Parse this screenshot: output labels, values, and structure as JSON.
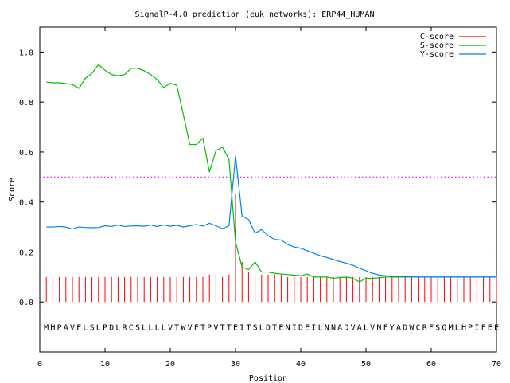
{
  "chart_data": {
    "type": "line",
    "title": "SignalP-4.0 prediction (euk networks): ERP44_HUMAN",
    "xlabel": "Position",
    "ylabel": "Score",
    "xlim": [
      0,
      70
    ],
    "ylim": [
      -0.2,
      1.1
    ],
    "x_ticks": [
      0,
      10,
      20,
      30,
      40,
      50,
      60,
      70
    ],
    "y_ticks": [
      0.0,
      0.2,
      0.4,
      0.6,
      0.8,
      1.0
    ],
    "x_tick_labels": [
      "0",
      "10",
      "20",
      "30",
      "40",
      "50",
      "60",
      "70"
    ],
    "y_tick_labels": [
      "0.0",
      "0.2",
      "0.4",
      "0.6",
      "0.8",
      "1.0"
    ],
    "threshold": 0.5,
    "legend_position": "top-right",
    "colors": {
      "c_score": "#ff0000",
      "s_score": "#00c000",
      "y_score": "#0080ff",
      "threshold": "#ff00ff"
    },
    "sequence": "MHPAVFLSLPDLRCSLLLLVTWVFTPVTTEITSLDTENIDEILNNADVALVNFYADWCRFSQMLHPIFEE",
    "series": [
      {
        "name": "C-score",
        "style": "impulse",
        "x": [
          1,
          2,
          3,
          4,
          5,
          6,
          7,
          8,
          9,
          10,
          11,
          12,
          13,
          14,
          15,
          16,
          17,
          18,
          19,
          20,
          21,
          22,
          23,
          24,
          25,
          26,
          27,
          28,
          29,
          30,
          31,
          32,
          33,
          34,
          35,
          36,
          37,
          38,
          39,
          40,
          41,
          42,
          43,
          44,
          45,
          46,
          47,
          48,
          49,
          50,
          51,
          52,
          53,
          54,
          55,
          56,
          57,
          58,
          59,
          60,
          61,
          62,
          63,
          64,
          65,
          66,
          67,
          68,
          69,
          70
        ],
        "values": [
          0.1,
          0.1,
          0.1,
          0.1,
          0.1,
          0.1,
          0.1,
          0.1,
          0.1,
          0.1,
          0.1,
          0.1,
          0.1,
          0.1,
          0.1,
          0.1,
          0.1,
          0.1,
          0.1,
          0.1,
          0.1,
          0.1,
          0.1,
          0.1,
          0.1,
          0.11,
          0.11,
          0.1,
          0.11,
          0.43,
          0.16,
          0.12,
          0.11,
          0.11,
          0.11,
          0.11,
          0.11,
          0.1,
          0.1,
          0.1,
          0.1,
          0.1,
          0.1,
          0.1,
          0.1,
          0.1,
          0.1,
          0.1,
          0.1,
          0.1,
          0.1,
          0.1,
          0.1,
          0.1,
          0.1,
          0.1,
          0.1,
          0.1,
          0.1,
          0.1,
          0.1,
          0.1,
          0.1,
          0.1,
          0.1,
          0.1,
          0.1,
          0.1,
          0.1,
          0.1
        ]
      },
      {
        "name": "S-score",
        "style": "line",
        "x": [
          1,
          2,
          3,
          4,
          5,
          6,
          7,
          8,
          9,
          10,
          11,
          12,
          13,
          14,
          15,
          16,
          17,
          18,
          19,
          20,
          21,
          22,
          23,
          24,
          25,
          26,
          27,
          28,
          29,
          30,
          31,
          32,
          33,
          34,
          35,
          36,
          37,
          38,
          39,
          40,
          41,
          42,
          43,
          44,
          45,
          46,
          47,
          48,
          49,
          50,
          51,
          52,
          53,
          54,
          55,
          56,
          57,
          58,
          59,
          60,
          61,
          62,
          63,
          64,
          65,
          66,
          67,
          68,
          69,
          70
        ],
        "values": [
          0.88,
          0.877,
          0.877,
          0.874,
          0.87,
          0.855,
          0.895,
          0.915,
          0.95,
          0.927,
          0.91,
          0.905,
          0.91,
          0.935,
          0.935,
          0.925,
          0.91,
          0.89,
          0.858,
          0.875,
          0.867,
          0.75,
          0.63,
          0.63,
          0.655,
          0.52,
          0.605,
          0.62,
          0.57,
          0.24,
          0.14,
          0.13,
          0.16,
          0.12,
          0.12,
          0.115,
          0.112,
          0.11,
          0.107,
          0.105,
          0.112,
          0.1,
          0.1,
          0.1,
          0.095,
          0.098,
          0.1,
          0.095,
          0.08,
          0.095,
          0.095,
          0.097,
          0.1,
          0.1,
          0.1,
          0.1,
          0.1,
          0.1,
          0.1,
          0.1,
          0.1,
          0.1,
          0.1,
          0.1,
          0.1,
          0.1,
          0.1,
          0.1,
          0.1,
          0.1
        ]
      },
      {
        "name": "Y-score",
        "style": "line",
        "x": [
          1,
          2,
          3,
          4,
          5,
          6,
          7,
          8,
          9,
          10,
          11,
          12,
          13,
          14,
          15,
          16,
          17,
          18,
          19,
          20,
          21,
          22,
          23,
          24,
          25,
          26,
          27,
          28,
          29,
          30,
          31,
          32,
          33,
          34,
          35,
          36,
          37,
          38,
          39,
          40,
          41,
          42,
          43,
          44,
          45,
          46,
          47,
          48,
          49,
          50,
          51,
          52,
          53,
          54,
          55,
          56,
          57,
          58,
          59,
          60,
          61,
          62,
          63,
          64,
          65,
          66,
          67,
          68,
          69,
          70
        ],
        "values": [
          0.3,
          0.3,
          0.302,
          0.3,
          0.292,
          0.3,
          0.298,
          0.297,
          0.298,
          0.305,
          0.302,
          0.308,
          0.302,
          0.304,
          0.305,
          0.303,
          0.308,
          0.302,
          0.308,
          0.303,
          0.307,
          0.3,
          0.305,
          0.31,
          0.304,
          0.315,
          0.305,
          0.293,
          0.305,
          0.585,
          0.345,
          0.33,
          0.275,
          0.29,
          0.265,
          0.25,
          0.248,
          0.23,
          0.22,
          0.215,
          0.205,
          0.195,
          0.185,
          0.178,
          0.17,
          0.162,
          0.155,
          0.147,
          0.135,
          0.125,
          0.115,
          0.108,
          0.105,
          0.103,
          0.103,
          0.102,
          0.1,
          0.1,
          0.1,
          0.1,
          0.1,
          0.1,
          0.1,
          0.1,
          0.1,
          0.1,
          0.1,
          0.1,
          0.1,
          0.1
        ]
      }
    ]
  }
}
